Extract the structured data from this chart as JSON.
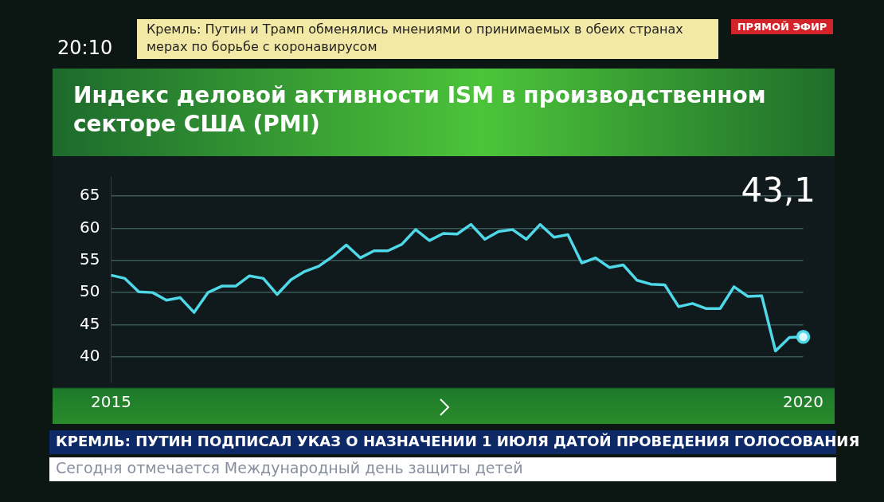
{
  "chart_data": {
    "type": "line",
    "title": "Индекс деловой активности ISM в производственном секторе США (PMI)",
    "categories": [
      "2015",
      null,
      null,
      null,
      null,
      null,
      null,
      null,
      null,
      null,
      null,
      null,
      null,
      null,
      null,
      null,
      null,
      null,
      null,
      null,
      null,
      null,
      null,
      null,
      null,
      null,
      null,
      null,
      null,
      null,
      null,
      null,
      null,
      null,
      null,
      null,
      null,
      null,
      null,
      null,
      null,
      null,
      null,
      null,
      null,
      null,
      null,
      null,
      null,
      null,
      "2020"
    ],
    "series": [
      {
        "color": "#4fd8e8",
        "values": [
          52.7,
          52.2,
          50.1,
          50.0,
          48.8,
          49.2,
          46.9,
          50.0,
          51.0,
          51.0,
          52.6,
          52.2,
          49.7,
          52.0,
          53.3,
          54.1,
          55.6,
          57.4,
          55.4,
          56.5,
          56.5,
          57.5,
          59.8,
          58.1,
          59.2,
          59.1,
          60.6,
          58.3,
          59.5,
          59.8,
          58.3,
          60.6,
          58.6,
          59.0,
          54.6,
          55.4,
          53.9,
          54.3,
          51.9,
          51.3,
          51.2,
          47.8,
          48.3,
          47.5,
          47.5,
          50.9,
          49.4,
          49.5,
          40.9,
          43.0,
          43.1
        ]
      }
    ],
    "ylim": [
      36,
      68
    ],
    "yticks": [
      40,
      45,
      50,
      55,
      60,
      65
    ],
    "grid": "y",
    "legend": false,
    "annotations": [
      "43,1",
      "20:10",
      "Кремль: Путин и Трамп обменялись мнениями о принимаемых в обеих странах мерах по борьбе с коронавирусом",
      "ПРЯМОЙ ЭФИР",
      "КРЕМЛЬ: ПУТИН ПОДПИСАЛ УКАЗ О НАЗНАЧЕНИИ 1 ИЮЛЯ ДАТОЙ ПРОВЕДЕНИЯ ГОЛОСОВАНИЯ",
      "Сегодня отмечается Международный день защиты детей"
    ]
  }
}
